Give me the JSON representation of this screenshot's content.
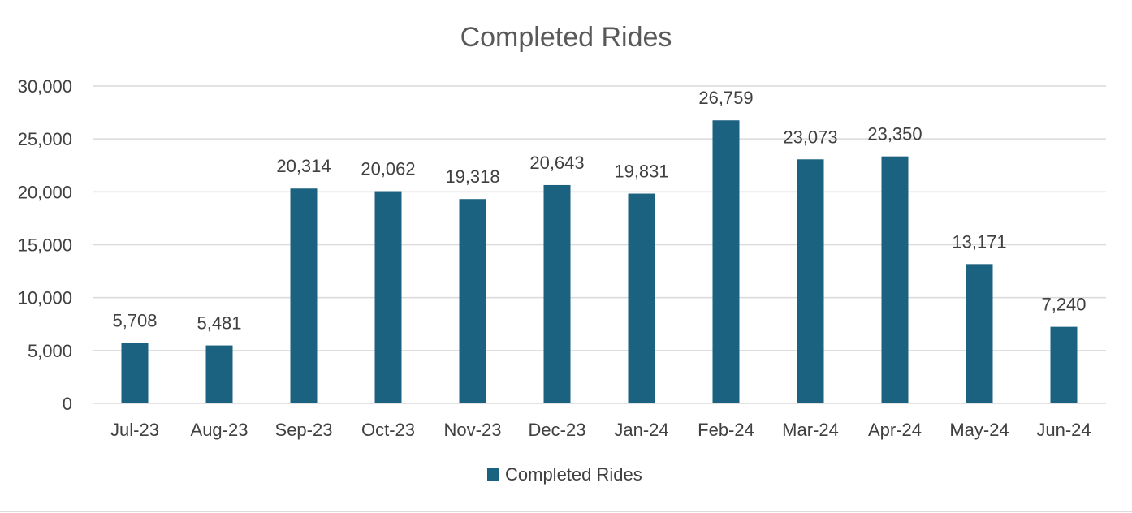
{
  "chart_data": {
    "type": "bar",
    "title": "Completed Rides",
    "xlabel": "",
    "ylabel": "",
    "categories": [
      "Jul-23",
      "Aug-23",
      "Sep-23",
      "Oct-23",
      "Nov-23",
      "Dec-23",
      "Jan-24",
      "Feb-24",
      "Mar-24",
      "Apr-24",
      "May-24",
      "Jun-24"
    ],
    "series": [
      {
        "name": "Completed Rides",
        "values": [
          5708,
          5481,
          20314,
          20062,
          19318,
          20643,
          19831,
          26759,
          23073,
          23350,
          13171,
          7240
        ],
        "value_labels": [
          "5,708",
          "5,481",
          "20,314",
          "20,062",
          "19,318",
          "20,643",
          "19,831",
          "26,759",
          "23,073",
          "23,350",
          "13,171",
          "7,240"
        ],
        "color": "#1b6180"
      }
    ],
    "ylim": [
      0,
      30000
    ],
    "y_ticks": [
      0,
      5000,
      10000,
      15000,
      20000,
      25000,
      30000
    ],
    "y_tick_labels": [
      "0",
      "5,000",
      "10,000",
      "15,000",
      "20,000",
      "25,000",
      "30,000"
    ],
    "grid": true,
    "legend_position": "bottom",
    "data_labels": true
  }
}
